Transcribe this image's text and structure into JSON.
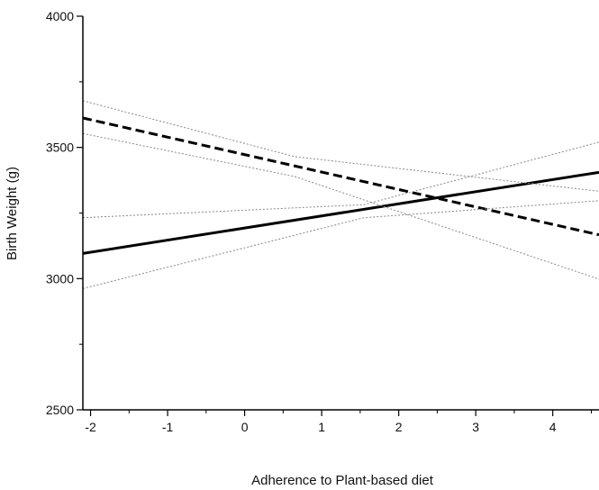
{
  "chart_data": {
    "type": "line",
    "title": "",
    "xlabel": "Adherence to Plant-based diet",
    "ylabel": "Birth Weight (g)",
    "xlim": [
      -2.1,
      4.6
    ],
    "ylim": [
      2500,
      4000
    ],
    "x_ticks": [
      -2,
      -1,
      0,
      1,
      2,
      3,
      4
    ],
    "y_ticks": [
      2500,
      3000,
      3500,
      4000
    ],
    "x_tick_labels": [
      "-2",
      "-1",
      "0",
      "1",
      "2",
      "3",
      "4"
    ],
    "y_tick_labels": [
      "2500",
      "3000",
      "3500",
      "4000"
    ],
    "grid": false,
    "legend": "none",
    "series": [
      {
        "style": "solid",
        "color": "#000000",
        "points": [
          {
            "x": -2.1,
            "y": 3096
          },
          {
            "x": 4.6,
            "y": 3405
          }
        ]
      },
      {
        "style": "dashed",
        "color": "#000000",
        "points": [
          {
            "x": -2.1,
            "y": 3612
          },
          {
            "x": 4.6,
            "y": 3167
          }
        ]
      },
      {
        "style": "dotted",
        "color": "#888888",
        "points": [
          {
            "x": -2.1,
            "y": 3678
          },
          {
            "x": 0.65,
            "y": 3465
          },
          {
            "x": 4.6,
            "y": 3333
          }
        ]
      },
      {
        "style": "dotted",
        "color": "#888888",
        "points": [
          {
            "x": -2.1,
            "y": 3553
          },
          {
            "x": 0.65,
            "y": 3389
          },
          {
            "x": 4.6,
            "y": 2998
          }
        ]
      },
      {
        "style": "dotted",
        "color": "#888888",
        "points": [
          {
            "x": -2.1,
            "y": 3232
          },
          {
            "x": 1.55,
            "y": 3282
          },
          {
            "x": 4.6,
            "y": 3520
          }
        ]
      },
      {
        "style": "dotted",
        "color": "#888888",
        "points": [
          {
            "x": -2.1,
            "y": 2962
          },
          {
            "x": 1.55,
            "y": 3232
          },
          {
            "x": 4.6,
            "y": 3297
          }
        ]
      }
    ]
  }
}
